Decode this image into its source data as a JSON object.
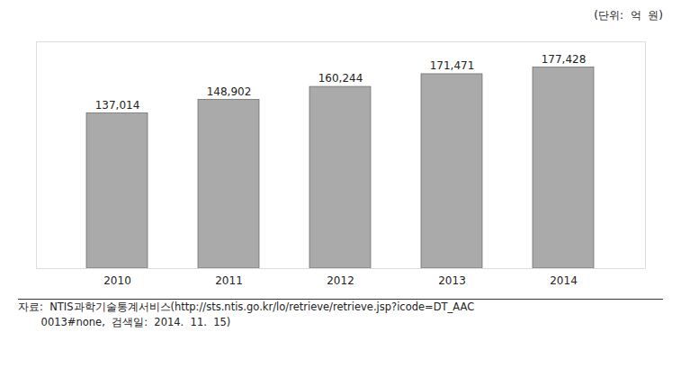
{
  "chart_data": {
    "type": "bar",
    "categories": [
      "2010",
      "2011",
      "2012",
      "2013",
      "2014"
    ],
    "values": [
      137014,
      148902,
      160244,
      171471,
      177428
    ],
    "value_labels": [
      "137,014",
      "148,902",
      "160,244",
      "171,471",
      "177,428"
    ],
    "data_labels": true,
    "color": "#aaaaaa",
    "ylim": [
      0,
      200000
    ],
    "tick_labels": "x",
    "grid": false,
    "ylabel": "(단위:  억  원)",
    "annotations": [
      "자료:  NTIS과학기술통계서비스(http://sts.ntis.go.kr/lo/retrieve/retrieve.jsp?icode=DT_AAC",
      "       0013#none,  검색일:  2014.  11.  15)"
    ]
  }
}
